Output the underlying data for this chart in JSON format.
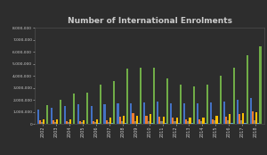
{
  "title": "Number of International Enrolments",
  "background_color": "#2d2d2d",
  "text_color": "#cccccc",
  "years": [
    2002,
    2003,
    2004,
    2005,
    2006,
    2007,
    2008,
    2009,
    2010,
    2011,
    2012,
    2013,
    2014,
    2015,
    2016,
    2017,
    2018
  ],
  "series": {
    "Higher Education": [
      1200000,
      1350000,
      1500000,
      1650000,
      1500000,
      1650000,
      1700000,
      1750000,
      1800000,
      1850000,
      1700000,
      1700000,
      1750000,
      1800000,
      1850000,
      2050000,
      2200000
    ],
    "VET": [
      300000,
      280000,
      250000,
      220000,
      250000,
      300000,
      600000,
      900000,
      700000,
      600000,
      500000,
      400000,
      350000,
      380000,
      600000,
      800000,
      1050000
    ],
    "Schools": [
      150000,
      160000,
      170000,
      180000,
      190000,
      200000,
      210000,
      220000,
      230000,
      240000,
      250000,
      260000,
      270000,
      280000,
      290000,
      300000,
      310000
    ],
    "ELICOS": [
      400000,
      380000,
      350000,
      320000,
      400000,
      500000,
      700000,
      700000,
      800000,
      600000,
      500000,
      500000,
      550000,
      700000,
      800000,
      900000,
      950000
    ],
    "Non-award": [
      50000,
      50000,
      50000,
      50000,
      60000,
      70000,
      80000,
      90000,
      100000,
      80000,
      60000,
      60000,
      70000,
      80000,
      90000,
      100000,
      110000
    ],
    "Grand Total": [
      1600000,
      2000000,
      2500000,
      2600000,
      3300000,
      3600000,
      4600000,
      4700000,
      4700000,
      3800000,
      3300000,
      3100000,
      3300000,
      4000000,
      4700000,
      5700000,
      6500000
    ]
  },
  "colors": {
    "Higher Education": "#4472c4",
    "VET": "#ed7d31",
    "Schools": "#808080",
    "ELICOS": "#ffc000",
    "Non-award": "#5b9bd5",
    "Grand Total": "#70ad47"
  },
  "ylim": [
    0,
    8000000
  ],
  "yticks": [
    0,
    1000000,
    2000000,
    3000000,
    4000000,
    5000000,
    6000000,
    7000000,
    8000000
  ],
  "ytick_labels": [
    "0",
    "1,000,000",
    "2,000,000",
    "3,000,000",
    "4,000,000",
    "5,000,000",
    "6,000,000",
    "7,000,000",
    "8,000,000"
  ]
}
